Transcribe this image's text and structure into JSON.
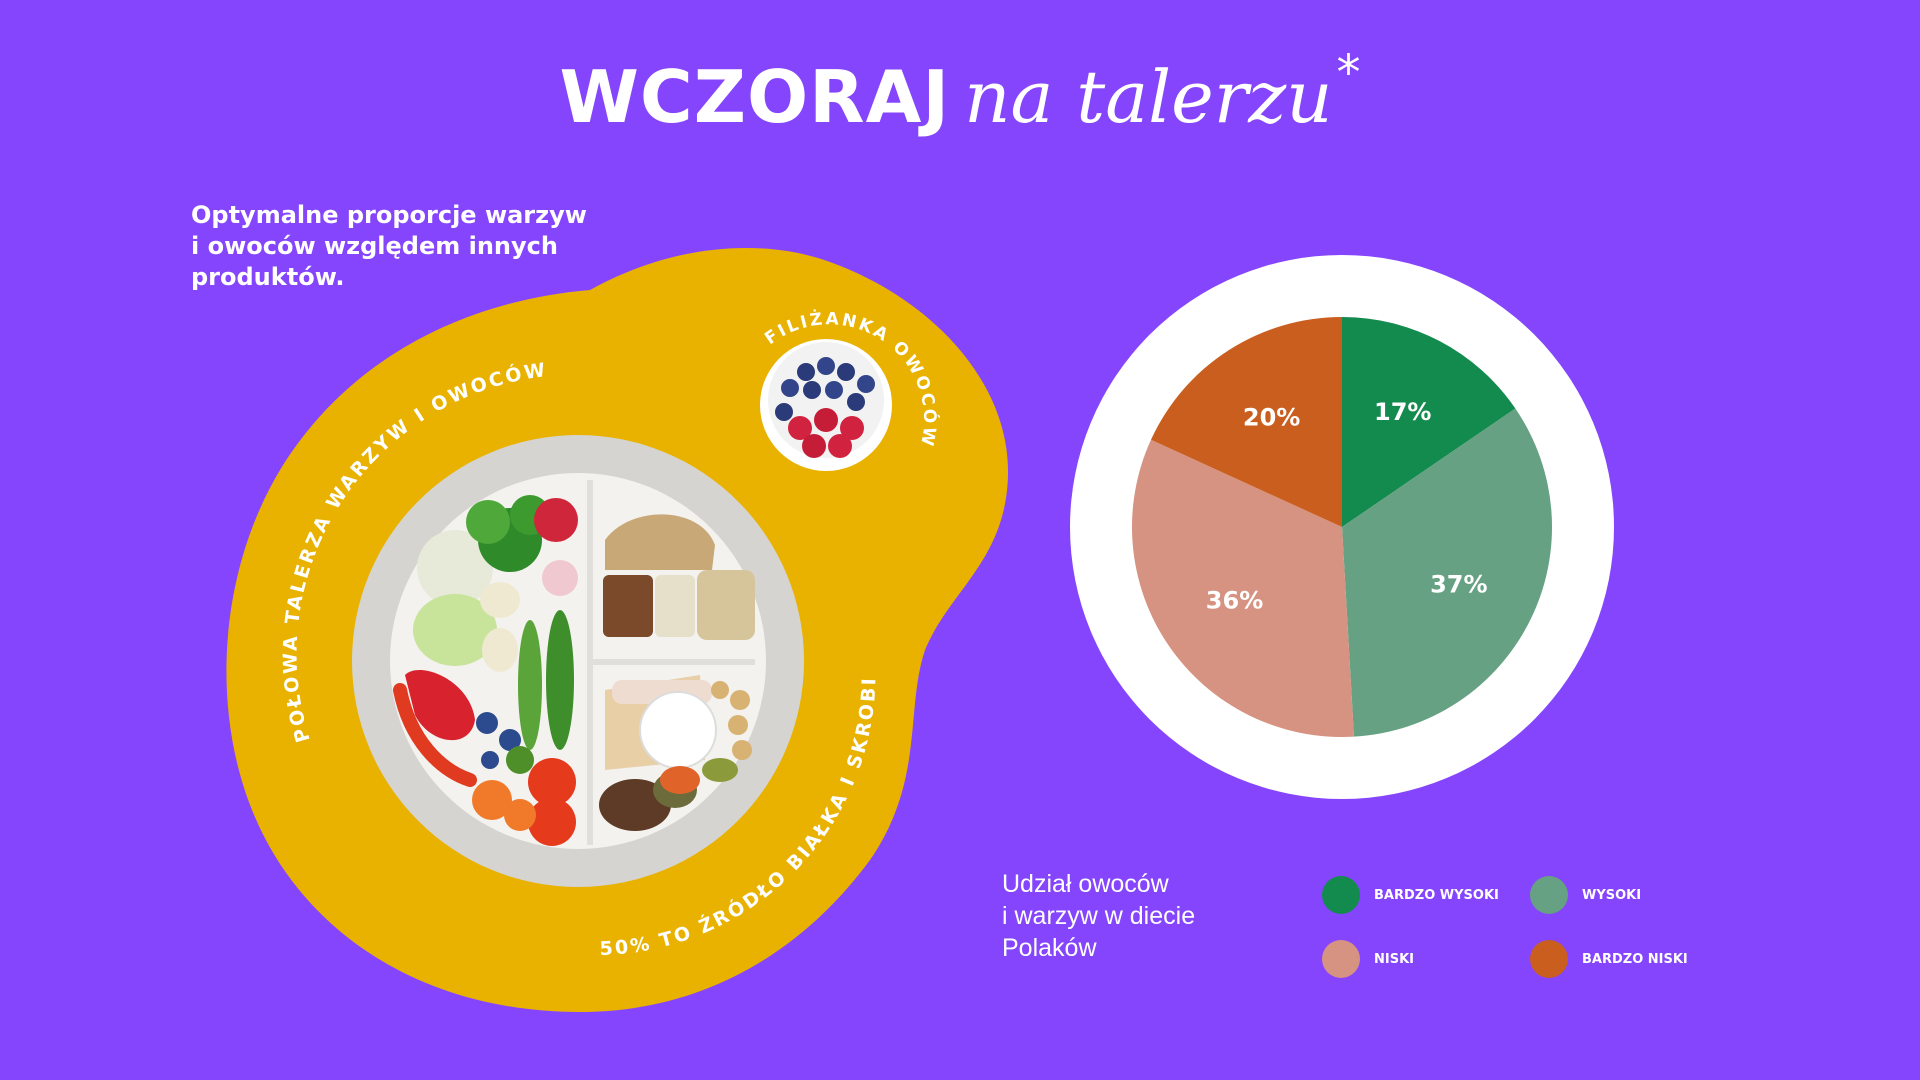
{
  "title": {
    "bold_part": "WCZORAJ",
    "script_part": "na talerzu",
    "asterisk": "*"
  },
  "intro_lines": [
    "Optymalne proporcje warzyw",
    "i owoców względem innych",
    "produktów."
  ],
  "plate_labels": {
    "left_arc": "POŁOWA TALERZA WARZYW I OWOCÓW",
    "cup_arc": "FILIŻANKA OWOCÓW",
    "bottom_arc": "50% TO ŹRÓDŁO BIAŁKA I SKROBI"
  },
  "legend": {
    "title_lines": [
      "Udział owoców",
      "i warzyw w diecie",
      "Polaków"
    ]
  },
  "colors": {
    "background": "#8545fd",
    "blob": "#e9b200",
    "bardzo_wysoki": "#138a4e",
    "wysoki": "#65a182",
    "niski": "#d79381",
    "bardzo_niski": "#c95e1f"
  },
  "chart_data": {
    "type": "pie",
    "slices": [
      {
        "name": "BARDZO WYSOKI",
        "value": 17,
        "label": "17%",
        "color": "#138a4e"
      },
      {
        "name": "WYSOKI",
        "value": 37,
        "label": "37%",
        "color": "#65a182"
      },
      {
        "name": "NISKI",
        "value": 36,
        "label": "36%",
        "color": "#d79381"
      },
      {
        "name": "BARDZO NISKI",
        "value": 20,
        "label": "20%",
        "color": "#c95e1f"
      }
    ],
    "legend_placement": "bottom-right"
  }
}
